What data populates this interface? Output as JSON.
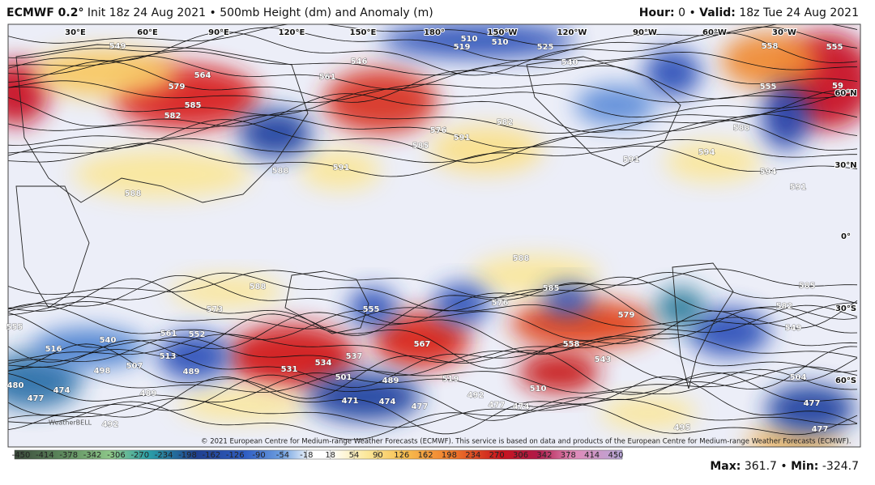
{
  "header": {
    "model": "ECMWF 0.2°",
    "title": "Init 18z 24 Aug 2021 • 500mb Height (dm) and Anomaly (m)",
    "hour_label": "Hour:",
    "hour": 0,
    "separator": "•",
    "valid_label": "Valid:",
    "valid": "18z Tue 24 Aug 2021"
  },
  "longitudes": [
    "30°E",
    "60°E",
    "90°E",
    "120°E",
    "150°E",
    "180°",
    "150°W",
    "120°W",
    "90°W",
    "60°W",
    "30°W"
  ],
  "latitudes": [
    "60°N",
    "30°N",
    "0°",
    "30°S",
    "60°S"
  ],
  "contour_labels": [
    579,
    585,
    582,
    561,
    546,
    525,
    510,
    510,
    519,
    576,
    582,
    591,
    585,
    588,
    591,
    588,
    549,
    564,
    594,
    594,
    591,
    591,
    588,
    558,
    555,
    555,
    540,
    588,
    573,
    588,
    585,
    576,
    579,
    585,
    582,
    555,
    567,
    558,
    543,
    531,
    534,
    537,
    501,
    489,
    519,
    492,
    510,
    477,
    474,
    477,
    474,
    471,
    540,
    516,
    498,
    507,
    513,
    489,
    561,
    552,
    555,
    480,
    477,
    474,
    492,
    489,
    549,
    504,
    477,
    477,
    495,
    59
  ],
  "watermark": "WeatherBELL",
  "copyright": "© 2021 European Centre for Medium-range Weather Forecasts (ECMWF). This service is based on data and products of the European Centre for Medium-range Weather Forecasts (ECMWF).",
  "colorbar": {
    "ticks": [
      -450,
      -414,
      -378,
      -342,
      -306,
      -270,
      -234,
      -198,
      -162,
      -126,
      -90,
      -54,
      -18,
      18,
      54,
      90,
      126,
      162,
      198,
      234,
      270,
      306,
      342,
      378,
      414,
      450
    ]
  },
  "footer": {
    "max_label": "Max:",
    "max": 361.7,
    "separator": "•",
    "min_label": "Min:",
    "min": -324.7
  }
}
